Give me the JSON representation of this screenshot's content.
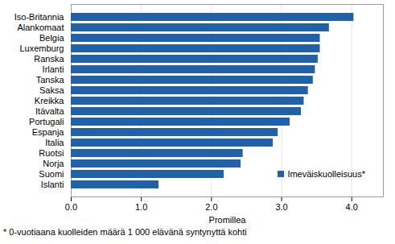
{
  "chart_data": {
    "type": "bar",
    "orientation": "horizontal",
    "categories": [
      "Iso-Britannia",
      "Alankomaat",
      "Belgia",
      "Luxemburg",
      "Ranska",
      "Irlanti",
      "Tanska",
      "Saksa",
      "Kreikka",
      "Itävalta",
      "Portugali",
      "Espanja",
      "Italia",
      "Ruotsi",
      "Norja",
      "Suomi",
      "Islanti"
    ],
    "series": [
      {
        "name": "Imeväiskuolleisuus*",
        "color": "#2161a9",
        "values": [
          4.03,
          3.68,
          3.55,
          3.55,
          3.52,
          3.48,
          3.45,
          3.38,
          3.32,
          3.28,
          3.12,
          2.95,
          2.88,
          2.45,
          2.42,
          2.18,
          1.25
        ]
      }
    ],
    "xlabel": "Promillea",
    "xlim": [
      0,
      4.45
    ],
    "xticks": [
      0,
      1,
      2,
      3,
      4
    ],
    "grid": true,
    "legend": "lower right",
    "caption": "* 0-vuotiaana kuolleiden määrä 1 000 elävänä syntynyttä kohti"
  }
}
